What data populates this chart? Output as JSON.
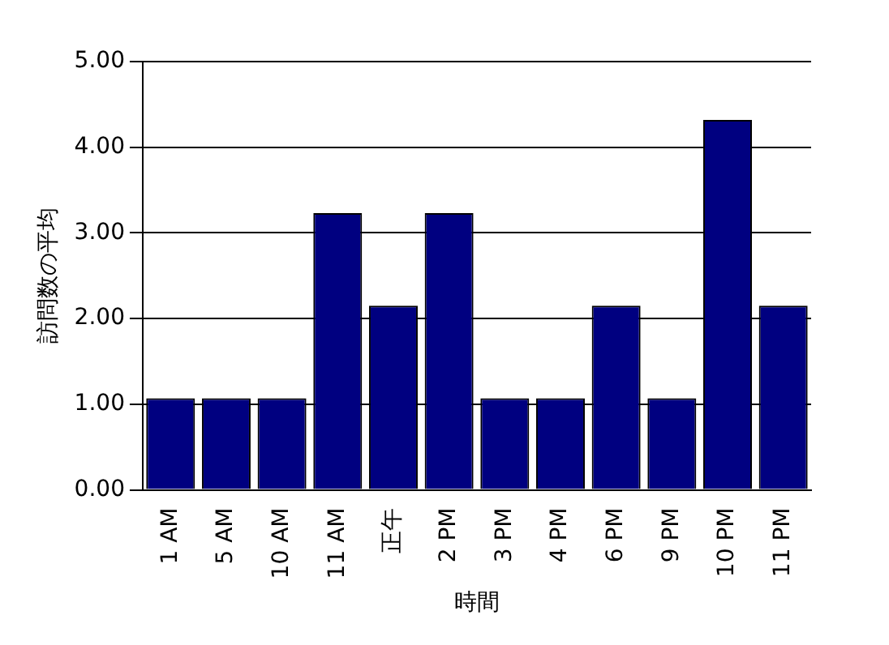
{
  "chart_data": {
    "type": "bar",
    "xlabel": "時間",
    "ylabel": "訪問数の平均",
    "categories": [
      "1 AM",
      "5 AM",
      "10 AM",
      "11 AM",
      "正午",
      "2 PM",
      "3 PM",
      "4 PM",
      "6 PM",
      "9 PM",
      "10 PM",
      "11 PM"
    ],
    "values": [
      1.07,
      1.07,
      1.07,
      3.23,
      2.15,
      3.23,
      1.07,
      1.07,
      2.15,
      1.07,
      4.32,
      2.15
    ],
    "color": "#000080",
    "ylim": [
      0,
      5
    ],
    "yticks": [
      {
        "value": 0,
        "label": "0.00"
      },
      {
        "value": 1,
        "label": "1.00"
      },
      {
        "value": 2,
        "label": "2.00"
      },
      {
        "value": 3,
        "label": "3.00"
      },
      {
        "value": 4,
        "label": "4.00"
      },
      {
        "value": 5,
        "label": "5.00"
      }
    ],
    "grid": "y",
    "legend": false
  }
}
